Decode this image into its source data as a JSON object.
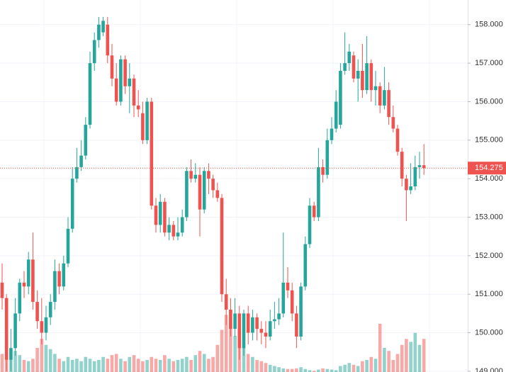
{
  "chart_data": {
    "type": "candlestick",
    "open": [
      151.3,
      150.9,
      149.3,
      149.6,
      150.5,
      151.3,
      151.2,
      151.9,
      150.8,
      150.3,
      150.0,
      150.4,
      150.8,
      151.6,
      151.2,
      151.8,
      152.7,
      154.0,
      154.3,
      154.6,
      155.4,
      157.0,
      157.6,
      157.8,
      158.0,
      157.2,
      156.6,
      156.0,
      157.1,
      156.4,
      156.6,
      155.9,
      155.7,
      155.0,
      156.0,
      153.3,
      152.8,
      153.4,
      152.6,
      152.8,
      152.5,
      152.6,
      153.0,
      154.2,
      154.0,
      154.1,
      153.2,
      154.2,
      154.0,
      153.7,
      153.5,
      151.0,
      150.6,
      150.1,
      150.5,
      149.6,
      150.5,
      150.0,
      150.4,
      150.1,
      150.0,
      149.9,
      150.3,
      150.35,
      150.5,
      151.3,
      151.1,
      150.5,
      149.9,
      151.2,
      152.3,
      153.3,
      153.0,
      154.3,
      154.1,
      155.0,
      155.3,
      155.4,
      156.8,
      157.0,
      157.2,
      156.6,
      156.8,
      156.3,
      157.0,
      156.3,
      156.4,
      155.9,
      156.3,
      155.6,
      155.3,
      154.7,
      154.0,
      153.7,
      153.8,
      154.3,
      154.35
    ],
    "high": [
      151.8,
      151.0,
      150.1,
      150.9,
      151.4,
      151.6,
      152.1,
      152.6,
      151.1,
      150.9,
      150.7,
      151.0,
      151.9,
      151.8,
      152.0,
      153.0,
      154.3,
      154.8,
      155.0,
      155.6,
      157.3,
      157.8,
      158.2,
      158.2,
      158.2,
      157.5,
      157.0,
      157.2,
      157.2,
      157.0,
      156.7,
      156.3,
      156.0,
      156.1,
      156.1,
      153.5,
      153.6,
      153.5,
      153.0,
      152.9,
      153.0,
      153.2,
      154.3,
      154.5,
      154.4,
      154.3,
      154.3,
      154.4,
      154.1,
      153.9,
      153.6,
      151.4,
      150.9,
      150.9,
      150.7,
      150.6,
      150.7,
      150.6,
      150.5,
      150.3,
      150.3,
      150.6,
      150.8,
      150.9,
      152.6,
      151.7,
      151.3,
      150.7,
      151.3,
      152.5,
      153.5,
      153.4,
      154.8,
      154.5,
      155.3,
      155.6,
      156.3,
      157.0,
      157.8,
      157.5,
      157.3,
      157.1,
      157.5,
      157.7,
      157.1,
      156.8,
      156.5,
      156.9,
      156.5,
      155.9,
      155.4,
      154.8,
      154.1,
      154.4,
      154.6,
      154.7,
      154.9
    ],
    "low": [
      150.6,
      149.0,
      149.0,
      149.4,
      150.3,
      150.9,
      151.0,
      150.6,
      150.1,
      149.7,
      149.8,
      150.2,
      150.6,
      151.0,
      151.1,
      151.7,
      152.6,
      153.9,
      154.2,
      154.5,
      155.3,
      156.8,
      157.4,
      157.7,
      157.0,
      156.4,
      155.9,
      155.9,
      156.2,
      155.7,
      155.6,
      155.6,
      154.9,
      154.9,
      153.2,
      152.6,
      152.6,
      152.5,
      152.4,
      152.4,
      152.4,
      152.5,
      152.9,
      153.9,
      153.9,
      152.5,
      153.1,
      153.6,
      153.5,
      153.4,
      150.8,
      150.2,
      149.9,
      149.9,
      149.3,
      149.4,
      149.7,
      149.8,
      149.8,
      149.7,
      149.6,
      149.8,
      150.1,
      150.2,
      150.4,
      150.9,
      150.3,
      149.6,
      149.8,
      151.1,
      152.2,
      152.9,
      152.9,
      153.9,
      154.0,
      154.9,
      155.2,
      155.3,
      156.7,
      156.8,
      156.5,
      156.0,
      156.1,
      156.2,
      156.0,
      155.9,
      155.7,
      155.8,
      155.4,
      155.2,
      154.6,
      153.8,
      152.9,
      153.6,
      153.7,
      154.0,
      154.1
    ],
    "close": [
      150.9,
      149.3,
      149.6,
      150.5,
      151.3,
      151.2,
      151.9,
      150.8,
      150.3,
      150.0,
      150.4,
      150.8,
      151.6,
      151.2,
      151.8,
      152.7,
      154.0,
      154.3,
      154.6,
      155.4,
      157.0,
      157.6,
      158.0,
      158.1,
      157.2,
      156.6,
      156.0,
      157.1,
      156.4,
      156.6,
      155.9,
      155.8,
      155.0,
      156.0,
      153.3,
      152.8,
      153.4,
      152.6,
      152.8,
      152.5,
      152.6,
      153.0,
      154.2,
      154.0,
      154.1,
      153.2,
      154.2,
      154.0,
      153.7,
      153.5,
      151.0,
      150.6,
      150.1,
      150.5,
      149.6,
      150.5,
      150.0,
      150.4,
      150.1,
      150.0,
      149.9,
      150.3,
      150.35,
      150.5,
      151.3,
      151.1,
      150.5,
      149.9,
      151.2,
      152.3,
      153.3,
      153.0,
      154.3,
      154.1,
      155.0,
      155.3,
      156.0,
      156.8,
      157.0,
      157.3,
      156.6,
      156.8,
      156.3,
      157.0,
      156.3,
      156.4,
      155.9,
      156.3,
      155.6,
      155.3,
      154.7,
      154.0,
      153.7,
      153.8,
      154.3,
      154.35,
      154.275
    ],
    "volume": [
      30,
      25,
      22,
      35,
      28,
      20,
      18,
      22,
      40,
      55,
      45,
      38,
      30,
      22,
      18,
      25,
      20,
      22,
      18,
      25,
      22,
      18,
      20,
      25,
      22,
      28,
      30,
      22,
      18,
      25,
      28,
      22,
      18,
      20,
      25,
      22,
      20,
      28,
      22,
      18,
      20,
      22,
      25,
      20,
      28,
      35,
      30,
      22,
      25,
      45,
      70,
      95,
      80,
      60,
      55,
      40,
      30,
      25,
      20,
      18,
      15,
      12,
      10,
      8,
      6,
      5,
      5,
      6,
      8,
      5,
      3,
      2,
      4,
      6,
      5,
      4,
      3,
      10,
      12,
      15,
      12,
      10,
      18,
      20,
      25,
      22,
      80,
      40,
      35,
      20,
      30,
      45,
      55,
      50,
      65,
      45,
      55
    ],
    "up_color": "#26a69a",
    "down_color": "#ef5350",
    "last_price": 154.275,
    "ylim": [
      148.98,
      158.64
    ],
    "yticks": [
      {
        "value": 149,
        "label": "149.000"
      },
      {
        "value": 150,
        "label": "150.000"
      },
      {
        "value": 151,
        "label": "151.000"
      },
      {
        "value": 152,
        "label": "152.000"
      },
      {
        "value": 153,
        "label": "153.000"
      },
      {
        "value": 154,
        "label": "154.000"
      },
      {
        "value": 155,
        "label": "155.000"
      },
      {
        "value": 156,
        "label": "156.000"
      },
      {
        "value": 157,
        "label": "157.000"
      },
      {
        "value": 158,
        "label": "158.000"
      }
    ],
    "grid": true
  }
}
